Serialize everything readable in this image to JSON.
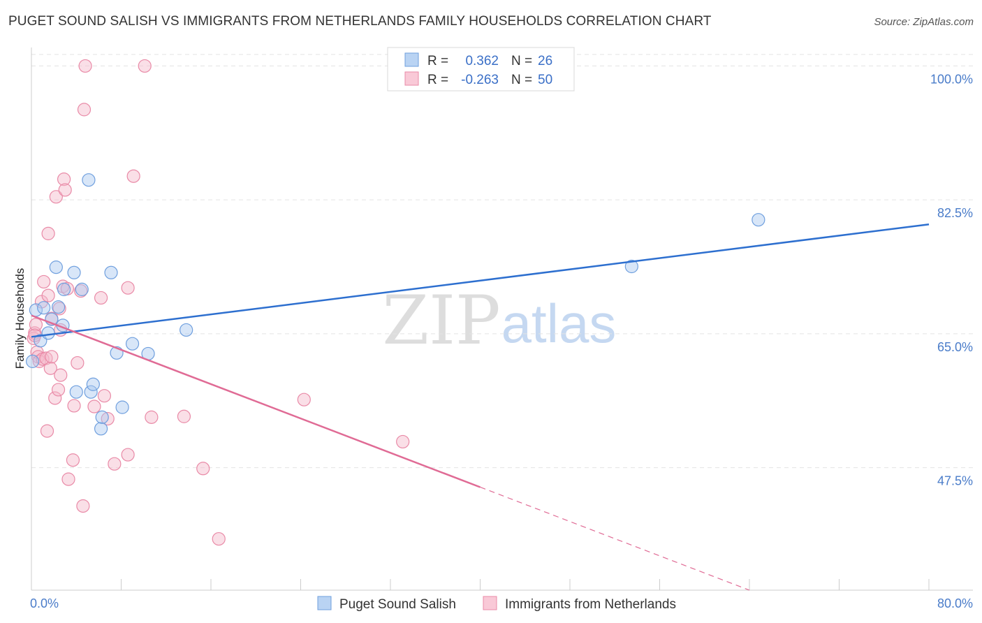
{
  "title": "PUGET SOUND SALISH VS IMMIGRANTS FROM NETHERLANDS FAMILY HOUSEHOLDS CORRELATION CHART",
  "source": "Source: ZipAtlas.com",
  "watermark": {
    "zip": "ZIP",
    "atlas": "atlas"
  },
  "colors": {
    "blue_fill": "#a9c8ef",
    "blue_stroke": "#6f9fde",
    "blue_line": "#2d6fcf",
    "pink_fill": "#f5b8ca",
    "pink_stroke": "#e98aa7",
    "pink_line": "#e06b95",
    "tick_text": "#4a7cc9",
    "grid": "#e3e3e3"
  },
  "stats_box": {
    "rows": [
      {
        "r_label": "R =",
        "r_value": "0.362",
        "n_label": "N =",
        "n_value": "26",
        "series": "blue"
      },
      {
        "r_label": "R =",
        "r_value": "-0.263",
        "n_label": "N =",
        "n_value": "50",
        "series": "pink"
      }
    ]
  },
  "chart_data": {
    "type": "scatter",
    "title": "PUGET SOUND SALISH VS IMMIGRANTS FROM NETHERLANDS FAMILY HOUSEHOLDS CORRELATION CHART",
    "xlabel": "",
    "ylabel": "Family Households",
    "xlim": [
      0,
      80
    ],
    "ylim": [
      31.5,
      101.5
    ],
    "x_tick_labels": [
      "0.0%",
      "80.0%"
    ],
    "y_ticks": [
      47.5,
      65.0,
      82.5,
      100.0
    ],
    "y_tick_labels": [
      "47.5%",
      "65.0%",
      "82.5%",
      "100.0%"
    ],
    "grid": true,
    "legend_position": "bottom",
    "series": [
      {
        "name": "Puget Sound Salish",
        "color": "blue",
        "r": 0.362,
        "n": 26,
        "trend": {
          "x": [
            0,
            80
          ],
          "y": [
            64.6,
            79.3
          ],
          "dashed_from": null
        },
        "points": [
          [
            0.1,
            61.4
          ],
          [
            0.4,
            68.1
          ],
          [
            0.8,
            64.1
          ],
          [
            1.1,
            68.4
          ],
          [
            1.5,
            65.1
          ],
          [
            1.8,
            66.9
          ],
          [
            2.2,
            73.7
          ],
          [
            2.4,
            68.5
          ],
          [
            2.8,
            66.1
          ],
          [
            2.9,
            70.8
          ],
          [
            3.8,
            73.0
          ],
          [
            4.0,
            57.4
          ],
          [
            4.5,
            70.8
          ],
          [
            5.1,
            85.1
          ],
          [
            5.3,
            57.4
          ],
          [
            5.5,
            58.4
          ],
          [
            6.2,
            52.6
          ],
          [
            6.3,
            54.1
          ],
          [
            7.1,
            73.0
          ],
          [
            7.6,
            62.5
          ],
          [
            8.1,
            55.4
          ],
          [
            9.0,
            63.7
          ],
          [
            10.4,
            62.4
          ],
          [
            13.8,
            65.5
          ],
          [
            53.5,
            73.8
          ],
          [
            64.8,
            79.9
          ]
        ]
      },
      {
        "name": "Immigrants from Netherlands",
        "color": "pink",
        "r": -0.263,
        "n": 50,
        "trend": {
          "x": [
            0,
            64
          ],
          "y": [
            67.4,
            31.5
          ],
          "dashed_from": 40
        },
        "points": [
          [
            0.2,
            64.4
          ],
          [
            0.3,
            65.1
          ],
          [
            0.4,
            66.2
          ],
          [
            0.5,
            62.6
          ],
          [
            0.6,
            62.0
          ],
          [
            0.7,
            61.4
          ],
          [
            0.9,
            69.2
          ],
          [
            1.0,
            61.7
          ],
          [
            1.1,
            71.8
          ],
          [
            1.3,
            61.8
          ],
          [
            1.4,
            52.3
          ],
          [
            1.5,
            70.0
          ],
          [
            1.5,
            78.1
          ],
          [
            1.7,
            60.5
          ],
          [
            1.8,
            62.0
          ],
          [
            1.8,
            67.0
          ],
          [
            2.1,
            56.6
          ],
          [
            2.2,
            82.9
          ],
          [
            2.4,
            57.7
          ],
          [
            2.5,
            68.3
          ],
          [
            2.6,
            59.6
          ],
          [
            2.6,
            65.5
          ],
          [
            2.8,
            71.2
          ],
          [
            2.9,
            85.2
          ],
          [
            3.0,
            83.8
          ],
          [
            3.2,
            70.9
          ],
          [
            3.3,
            46.0
          ],
          [
            3.7,
            48.5
          ],
          [
            3.8,
            55.6
          ],
          [
            4.1,
            61.2
          ],
          [
            4.4,
            70.6
          ],
          [
            4.6,
            42.5
          ],
          [
            4.7,
            94.3
          ],
          [
            4.8,
            100.0
          ],
          [
            5.6,
            55.5
          ],
          [
            6.2,
            69.7
          ],
          [
            6.5,
            56.9
          ],
          [
            6.8,
            53.9
          ],
          [
            7.4,
            48.0
          ],
          [
            8.6,
            49.2
          ],
          [
            8.6,
            71.0
          ],
          [
            9.1,
            85.6
          ],
          [
            10.1,
            100.0
          ],
          [
            10.7,
            54.1
          ],
          [
            13.6,
            54.2
          ],
          [
            15.3,
            47.4
          ],
          [
            16.7,
            38.2
          ],
          [
            24.3,
            56.4
          ],
          [
            33.1,
            50.9
          ],
          [
            0.3,
            64.8
          ]
        ]
      }
    ]
  }
}
